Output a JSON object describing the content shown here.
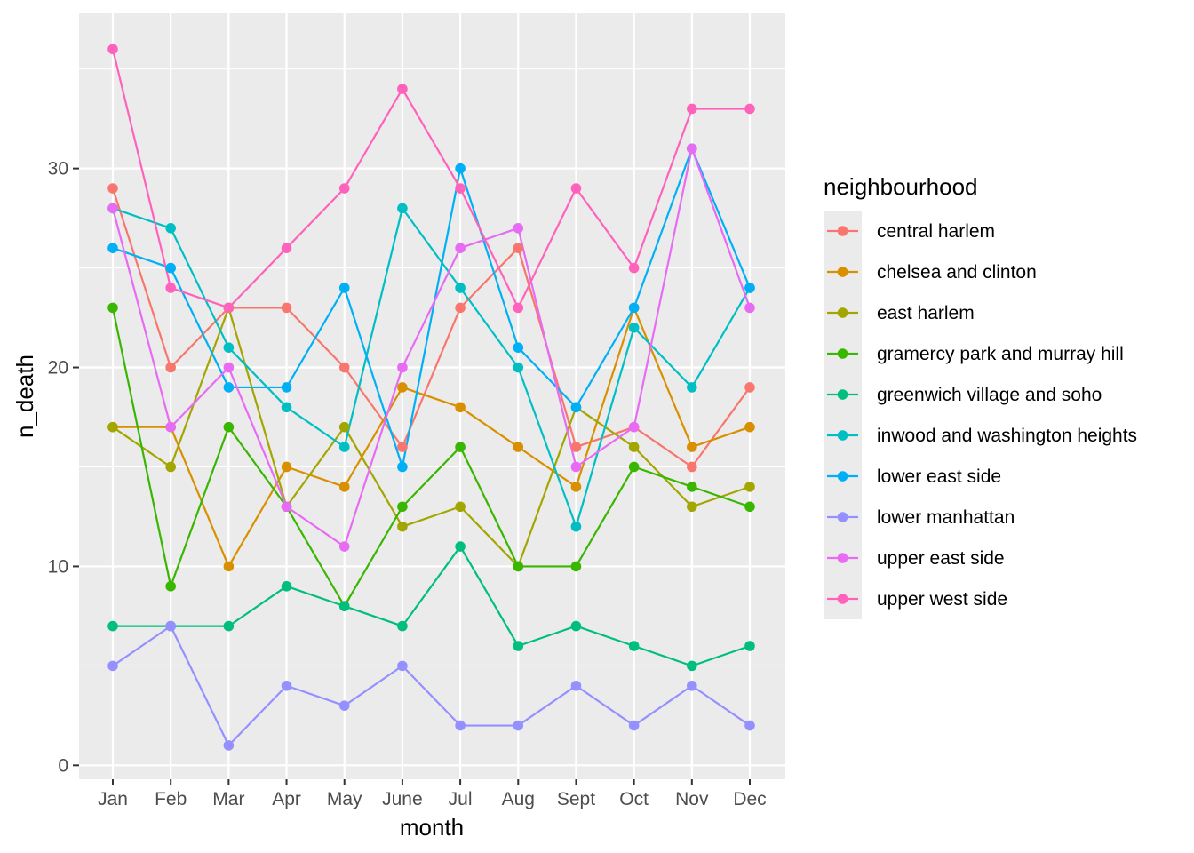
{
  "chart_data": {
    "type": "line",
    "xlabel": "month",
    "ylabel": "n_death",
    "categories": [
      "Jan",
      "Feb",
      "Mar",
      "Apr",
      "May",
      "June",
      "Jul",
      "Aug",
      "Sept",
      "Oct",
      "Nov",
      "Dec"
    ],
    "ylim": [
      -0.7,
      37.8
    ],
    "yticks": [
      0,
      10,
      20,
      30
    ],
    "grid": true,
    "legend": {
      "title": "neighbourhood",
      "position": "right"
    },
    "series": [
      {
        "name": "central harlem",
        "color": "#F8766D",
        "values": [
          29,
          20,
          23,
          23,
          20,
          16,
          23,
          26,
          16,
          17,
          15,
          19
        ]
      },
      {
        "name": "chelsea and clinton",
        "color": "#D89000",
        "values": [
          17,
          17,
          10,
          15,
          14,
          19,
          18,
          16,
          14,
          23,
          16,
          17
        ]
      },
      {
        "name": "east harlem",
        "color": "#A3A500",
        "values": [
          17,
          15,
          23,
          13,
          17,
          12,
          13,
          10,
          18,
          16,
          13,
          14
        ]
      },
      {
        "name": "gramercy park and murray hill",
        "color": "#39B600",
        "values": [
          23,
          9,
          17,
          13,
          8,
          13,
          16,
          10,
          10,
          15,
          14,
          13
        ]
      },
      {
        "name": "greenwich village and soho",
        "color": "#00BF7D",
        "values": [
          7,
          7,
          7,
          9,
          8,
          7,
          11,
          6,
          7,
          6,
          5,
          6
        ]
      },
      {
        "name": "inwood and washington heights",
        "color": "#00BFC4",
        "values": [
          28,
          27,
          21,
          18,
          16,
          28,
          24,
          20,
          12,
          22,
          19,
          24
        ]
      },
      {
        "name": "lower east side",
        "color": "#00B0F6",
        "values": [
          26,
          25,
          19,
          19,
          24,
          15,
          30,
          21,
          18,
          23,
          31,
          24
        ]
      },
      {
        "name": "lower manhattan",
        "color": "#9590FF",
        "values": [
          5,
          7,
          1,
          4,
          3,
          5,
          2,
          2,
          4,
          2,
          4,
          2
        ]
      },
      {
        "name": "upper east side",
        "color": "#E76BF3",
        "values": [
          28,
          17,
          20,
          13,
          11,
          20,
          26,
          27,
          15,
          17,
          31,
          23
        ]
      },
      {
        "name": "upper west side",
        "color": "#FF62BC",
        "values": [
          36,
          24,
          23,
          26,
          29,
          34,
          29,
          23,
          29,
          25,
          33,
          33
        ]
      }
    ]
  }
}
